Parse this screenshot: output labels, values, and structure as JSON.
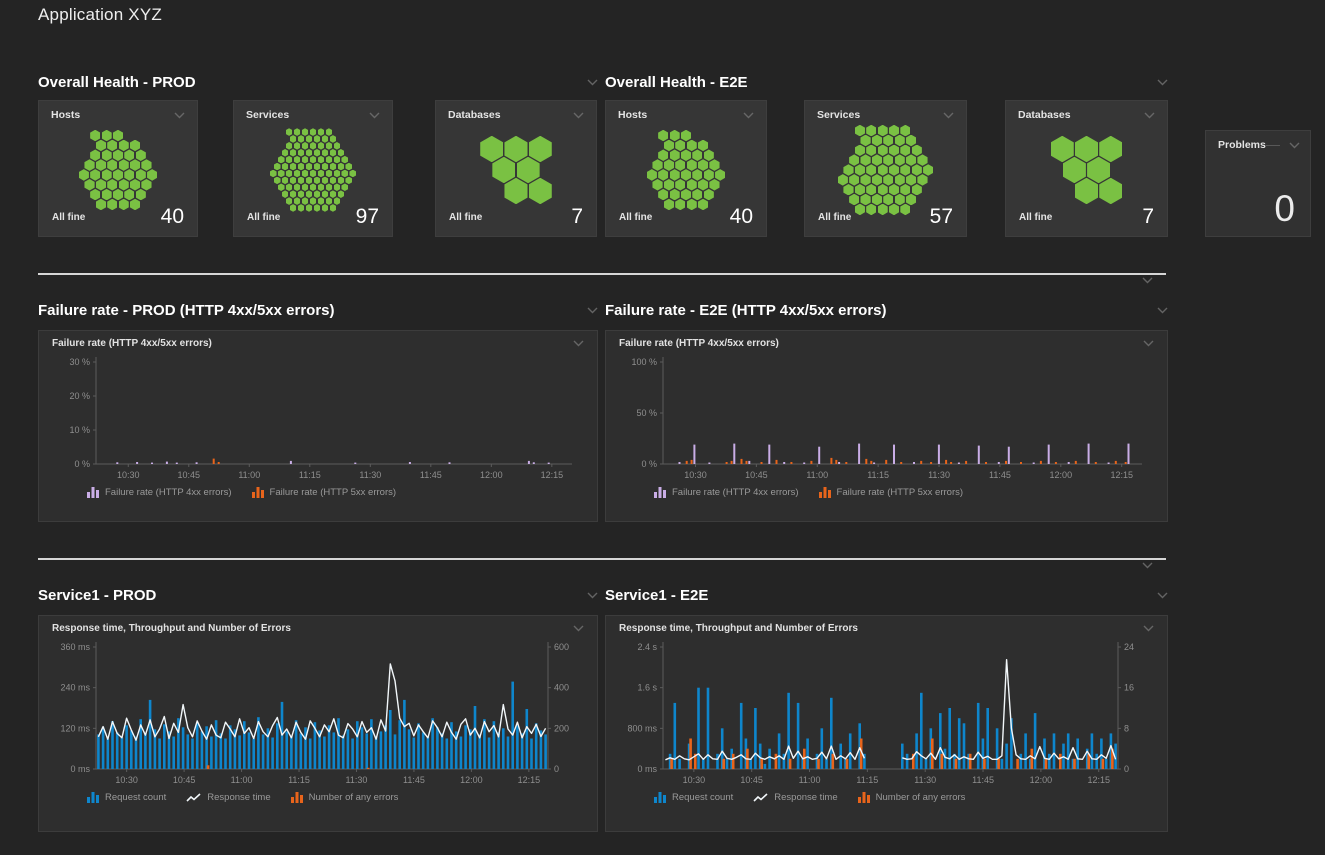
{
  "page": {
    "title": "Application XYZ"
  },
  "colors": {
    "healthy_green": "#7ac143",
    "request_bar_blue": "#0e86cc",
    "error_bar_orange": "#e8641b",
    "http4xx_bar_purple": "#c9ade6",
    "response_line_white": "#f2f7fa",
    "divider": "#d6d6d6",
    "page_background": "#242424",
    "tile_background": "#363636",
    "panel_background": "#2e2e2e"
  },
  "sections": {
    "health_prod": {
      "title": "Overall Health - PROD",
      "tiles": [
        {
          "title": "Hosts",
          "status": "All fine",
          "count": 40
        },
        {
          "title": "Services",
          "status": "All fine",
          "count": 97
        },
        {
          "title": "Databases",
          "status": "All fine",
          "count": 7
        }
      ]
    },
    "health_e2e": {
      "title": "Overall Health - E2E",
      "tiles": [
        {
          "title": "Hosts",
          "status": "All fine",
          "count": 40
        },
        {
          "title": "Services",
          "status": "All fine",
          "count": 57
        },
        {
          "title": "Databases",
          "status": "All fine",
          "count": 7
        }
      ]
    },
    "problems": {
      "title": "Problems",
      "value": "0"
    },
    "failure_prod": {
      "title": "Failure rate - PROD (HTTP 4xx/5xx errors)"
    },
    "failure_e2e": {
      "title": "Failure rate - E2E (HTTP 4xx/5xx errors)"
    },
    "service_prod": {
      "title": "Service1 - PROD"
    },
    "service_e2e": {
      "title": "Service1 - E2E"
    }
  },
  "chart_data": [
    {
      "id": "failure-rate-prod",
      "type": "bar",
      "title": "Failure rate (HTTP 4xx/5xx errors)",
      "x": {
        "points": 96,
        "total_minutes": 118,
        "tick_minutes": [
          8,
          23,
          38,
          53,
          68,
          83,
          98,
          113
        ],
        "tick_labels": [
          "10:30",
          "10:45",
          "11:00",
          "11:15",
          "11:30",
          "11:45",
          "12:00",
          "12:15"
        ]
      },
      "yaxis_left": {
        "ticks": [
          0,
          10,
          20,
          30
        ],
        "labels": [
          "0 %",
          "10 %",
          "20 %",
          "30 %"
        ]
      },
      "series": [
        {
          "name": "Failure rate (HTTP 4xx errors)",
          "type": "bar",
          "axis": "left",
          "color": "#c9ade6",
          "width": 2,
          "offset": -1,
          "values_sparse": {
            "4": 0.5,
            "8": 0.6,
            "11": 0.4,
            "14": 0.7,
            "16": 0.4,
            "20": 0.5,
            "39": 0.9,
            "52": 0.4,
            "63": 0.6,
            "71": 0.5,
            "87": 0.9,
            "88": 0.5,
            "91": 0.4
          }
        },
        {
          "name": "Failure rate (HTTP 5xx errors)",
          "type": "bar",
          "axis": "left",
          "color": "#e8641b",
          "width": 2,
          "offset": 1.2,
          "values_sparse": {
            "23": 1.6,
            "24": 0.6
          }
        }
      ]
    },
    {
      "id": "failure-rate-e2e",
      "type": "bar",
      "title": "Failure rate (HTTP 4xx/5xx errors)",
      "x": {
        "points": 96,
        "total_minutes": 118,
        "tick_minutes": [
          8,
          23,
          38,
          53,
          68,
          83,
          98,
          113
        ],
        "tick_labels": [
          "10:30",
          "10:45",
          "11:00",
          "11:15",
          "11:30",
          "11:45",
          "12:00",
          "12:15"
        ]
      },
      "yaxis_left": {
        "ticks": [
          0,
          50,
          100
        ],
        "labels": [
          "0 %",
          "50 %",
          "100 %"
        ]
      },
      "series": [
        {
          "name": "Failure rate (HTTP 4xx errors)",
          "type": "bar",
          "axis": "left",
          "color": "#c9ade6",
          "width": 2,
          "offset": -1,
          "values_sparse": {
            "3": 2,
            "6": 19,
            "9": 1.5,
            "14": 20,
            "17": 3,
            "21": 19,
            "24": 2,
            "28": 1.5,
            "31": 17,
            "35": 2,
            "39": 20,
            "42": 1.5,
            "46": 19,
            "50": 2,
            "55": 19,
            "59": 1.5,
            "63": 18,
            "67": 2,
            "69": 17,
            "74": 1.5,
            "77": 19,
            "81": 2,
            "85": 20,
            "89": 1.5,
            "93": 20
          }
        },
        {
          "name": "Failure rate (HTTP 5xx errors)",
          "type": "bar",
          "axis": "left",
          "color": "#e8641b",
          "width": 2,
          "offset": 1.2,
          "values_sparse": {
            "4": 3,
            "5": 4,
            "12": 2,
            "13": 3,
            "15": 5,
            "16": 3,
            "19": 2,
            "22": 4,
            "25": 2,
            "29": 3,
            "33": 6,
            "34": 4,
            "36": 2,
            "40": 5,
            "41": 3,
            "44": 4,
            "47": 2,
            "51": 3,
            "53": 2,
            "56": 4,
            "57": 2,
            "60": 3,
            "64": 2,
            "68": 3,
            "71": 2,
            "75": 3,
            "78": 2,
            "82": 3,
            "86": 2,
            "90": 3,
            "92": 2
          }
        }
      ]
    },
    {
      "id": "service1-prod",
      "type": "mixed",
      "title": "Response time, Throughput and Number of Errors",
      "x": {
        "points": 96,
        "total_minutes": 118,
        "tick_minutes": [
          8,
          23,
          38,
          53,
          68,
          83,
          98,
          113
        ],
        "tick_labels": [
          "10:30",
          "10:45",
          "11:00",
          "11:15",
          "11:30",
          "11:45",
          "12:00",
          "12:15"
        ]
      },
      "yaxis_left": {
        "ticks": [
          0,
          120,
          240,
          360
        ],
        "labels": [
          "0 ms",
          "120 ms",
          "240 ms",
          "360 ms"
        ]
      },
      "yaxis_right": {
        "ticks": [
          0,
          200,
          400,
          600
        ],
        "labels": [
          "0",
          "200",
          "400",
          "600"
        ]
      },
      "series": [
        {
          "name": "Request count",
          "type": "bar",
          "axis": "right",
          "color": "#0e86cc",
          "width": 2.6,
          "offset": 0,
          "values": [
            170,
            205,
            150,
            235,
            180,
            155,
            215,
            190,
            160,
            245,
            175,
            340,
            195,
            150,
            220,
            185,
            160,
            250,
            205,
            170,
            150,
            230,
            185,
            210,
            160,
            240,
            175,
            150,
            215,
            195,
            165,
            235,
            180,
            150,
            255,
            170,
            200,
            155,
            225,
            330,
            185,
            160,
            240,
            175,
            205,
            150,
            230,
            190,
            160,
            215,
            180,
            250,
            165,
            195,
            150,
            235,
            205,
            175,
            245,
            160,
            185,
            215,
            290,
            170,
            240,
            340,
            195,
            155,
            225,
            180,
            160,
            250,
            205,
            175,
            150,
            230,
            185,
            160,
            215,
            195,
            310,
            170,
            245,
            155,
            235,
            180,
            200,
            160,
            430,
            215,
            175,
            295,
            150,
            225,
            190,
            170
          ]
        },
        {
          "name": "Response time",
          "type": "line",
          "axis": "left",
          "color": "#f2f7fa",
          "values": [
            95,
            125,
            88,
            140,
            105,
            92,
            150,
            115,
            85,
            130,
            100,
            145,
            95,
            118,
            155,
            90,
            135,
            108,
            190,
            122,
            95,
            142,
            112,
            88,
            130,
            100,
            92,
            138,
            118,
            95,
            148,
            105,
            122,
            90,
            140,
            110,
            95,
            128,
            152,
            100,
            118,
            92,
            138,
            108,
            88,
            142,
            120,
            95,
            130,
            110,
            148,
            100,
            92,
            134,
            118,
            95,
            140,
            108,
            122,
            88,
            145,
            112,
            310,
            260,
            150,
            125,
            135,
            98,
            130,
            110,
            92,
            142,
            122,
            95,
            138,
            108,
            88,
            132,
            148,
            100,
            120,
            92,
            140,
            110,
            128,
            95,
            190,
            118,
            100,
            138,
            92,
            125,
            105,
            132,
            96,
            120
          ]
        },
        {
          "name": "Number of any errors",
          "type": "bar",
          "axis": "right",
          "color": "#e8641b",
          "width": 2.6,
          "offset": 1.5,
          "values_sparse": {
            "23": 18,
            "57": 6
          }
        }
      ]
    },
    {
      "id": "service1-e2e",
      "type": "mixed",
      "title": "Response time, Throughput and Number of Errors",
      "x": {
        "points": 96,
        "total_minutes": 118,
        "tick_minutes": [
          8,
          23,
          38,
          53,
          68,
          83,
          98,
          113
        ],
        "tick_labels": [
          "10:30",
          "10:45",
          "11:00",
          "11:15",
          "11:30",
          "11:45",
          "12:00",
          "12:15"
        ]
      },
      "yaxis_left": {
        "ticks": [
          0,
          800,
          1600,
          2400
        ],
        "labels": [
          "0 ms",
          "800 ms",
          "1.6 s",
          "2.4 s"
        ]
      },
      "yaxis_right": {
        "ticks": [
          0,
          8,
          16,
          24
        ],
        "labels": [
          "0",
          "8",
          "16",
          "24"
        ]
      },
      "series": [
        {
          "name": "Request count",
          "type": "bar",
          "axis": "right",
          "color": "#0e86cc",
          "width": 2.6,
          "offset": 0,
          "values": [
            0,
            3,
            13,
            2,
            0,
            5,
            0,
            16,
            2,
            16,
            0,
            3,
            8,
            2,
            4,
            0,
            13,
            6,
            2,
            12,
            5,
            1,
            4,
            0,
            7,
            3,
            15,
            0,
            13,
            2,
            6,
            0,
            3,
            8,
            2,
            14,
            0,
            5,
            2,
            7,
            0,
            9,
            3,
            0,
            0,
            0,
            0,
            0,
            0,
            0,
            5,
            3,
            0,
            7,
            15,
            2,
            8,
            0,
            11,
            4,
            12,
            3,
            10,
            9,
            3,
            0,
            13,
            6,
            12,
            0,
            8,
            2,
            5,
            10,
            0,
            3,
            7,
            2,
            11,
            0,
            6,
            3,
            7,
            0,
            5,
            7,
            2,
            6,
            0,
            4,
            7,
            3,
            6,
            2,
            7,
            5
          ]
        },
        {
          "name": "Response time",
          "type": "line",
          "axis": "left",
          "color": "#f2f7fa",
          "values": [
            180,
            220,
            190,
            260,
            200,
            180,
            240,
            300,
            190,
            280,
            200,
            190,
            350,
            210,
            190,
            230,
            280,
            200,
            190,
            310,
            220,
            190,
            240,
            200,
            260,
            190,
            450,
            210,
            350,
            200,
            240,
            190,
            210,
            330,
            200,
            450,
            190,
            260,
            200,
            320,
            190,
            420,
            210,
            null,
            null,
            null,
            null,
            null,
            null,
            null,
            220,
            190,
            200,
            340,
            260,
            200,
            310,
            190,
            420,
            230,
            200,
            280,
            190,
            240,
            200,
            190,
            330,
            210,
            250,
            190,
            190,
            260,
            2150,
            800,
            280,
            200,
            190,
            260,
            200,
            440,
            210,
            190,
            310,
            200,
            240,
            190,
            420,
            200,
            190,
            350,
            200,
            190,
            280,
            210,
            460,
            190
          ]
        },
        {
          "name": "Number of any errors",
          "type": "bar",
          "axis": "right",
          "color": "#e8641b",
          "width": 2.6,
          "offset": 1.5,
          "values_sparse": {
            "1": 2,
            "5": 6,
            "6": 3,
            "12": 2,
            "14": 3,
            "17": 4,
            "20": 2,
            "23": 3,
            "26": 2,
            "29": 4,
            "32": 2,
            "35": 3,
            "38": 2,
            "41": 6,
            "52": 3,
            "56": 6,
            "58": 3,
            "61": 2,
            "64": 3,
            "67": 2,
            "70": 2,
            "74": 2,
            "77": 4,
            "80": 2,
            "83": 3,
            "86": 2,
            "89": 3,
            "92": 2,
            "94": 4
          }
        }
      ]
    }
  ]
}
